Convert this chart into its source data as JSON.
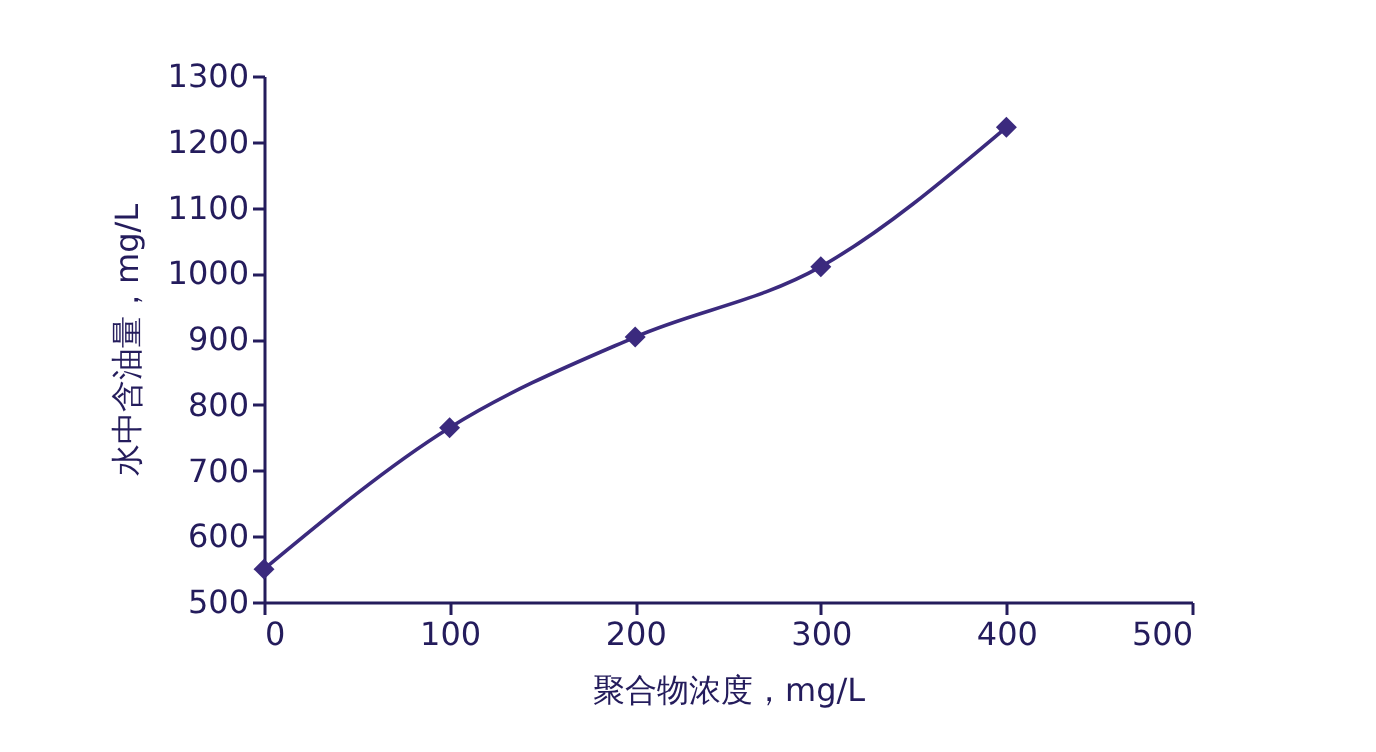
{
  "chart_data": {
    "type": "line",
    "xlabel": "聚合物浓度，mg/L",
    "ylabel": "水中含油量，mg/L",
    "x": [
      0,
      100,
      200,
      300,
      400
    ],
    "series": [
      {
        "color": "#3b2a7e",
        "values": [
          550,
          765,
          903,
          1010,
          1222
        ]
      }
    ],
    "xlim": [
      0,
      500
    ],
    "ylim": [
      500,
      1300
    ],
    "xticks": [
      0,
      100,
      200,
      300,
      400,
      500
    ],
    "yticks": [
      500,
      600,
      700,
      800,
      900,
      1000,
      1100,
      1200,
      1300
    ],
    "marker": "diamond",
    "line_style": "solid",
    "grid": false
  }
}
